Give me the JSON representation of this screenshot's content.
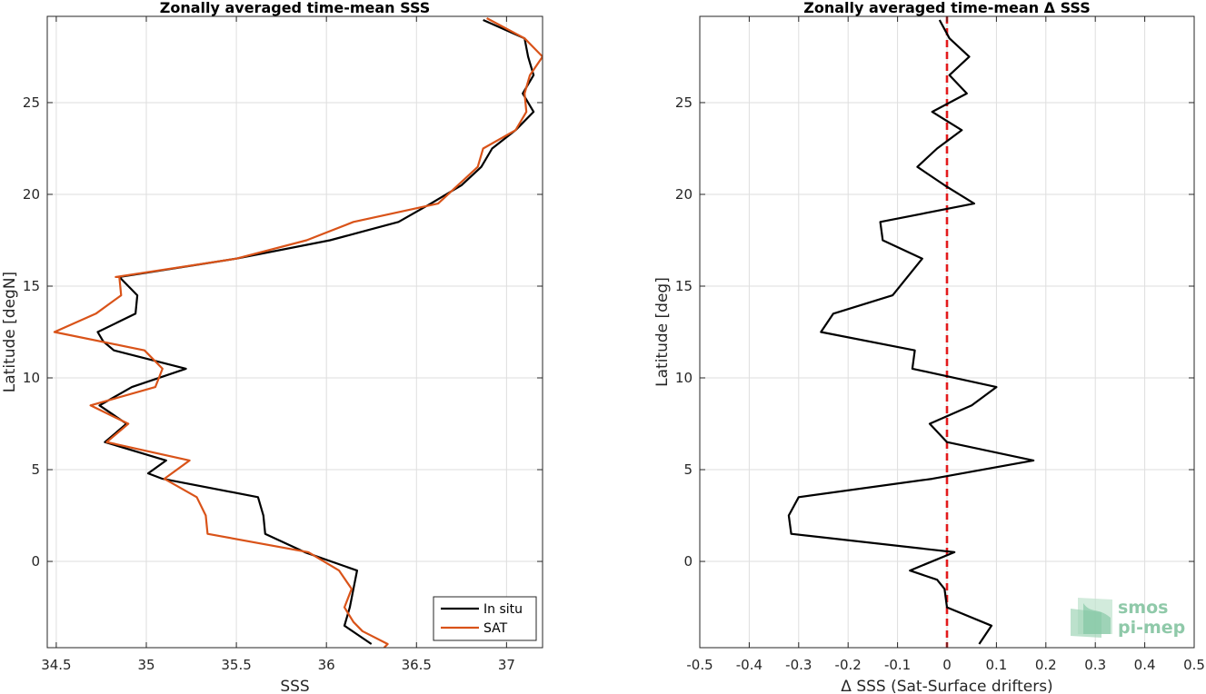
{
  "chart_data": [
    {
      "type": "line",
      "title": "Zonally averaged time-mean SSS",
      "xlabel": "SSS",
      "ylabel": "Latitude [degN]",
      "xlim": [
        34.45,
        37.2
      ],
      "ylim": [
        -4.7,
        29.7
      ],
      "xticks": [
        34.5,
        35,
        35.5,
        36,
        36.5,
        37
      ],
      "yticks": [
        0,
        5,
        10,
        15,
        20,
        25
      ],
      "grid": true,
      "legend": "bottom-right",
      "series": [
        {
          "name": "In situ",
          "color": "#000000",
          "x": [
            36.25,
            36.1,
            36.13,
            36.15,
            36.17,
            35.88,
            35.66,
            35.65,
            35.62,
            35.09,
            35.01,
            35.11,
            34.77,
            34.89,
            34.74,
            34.92,
            35.22,
            34.82,
            34.76,
            34.73,
            34.94,
            34.95,
            34.9,
            34.85,
            35.5,
            36.02,
            36.4,
            36.58,
            36.75,
            36.86,
            36.92,
            37.05,
            37.15,
            37.09,
            37.15,
            37.12,
            37.1,
            36.87
          ],
          "y": [
            -4.5,
            -3.5,
            -2.5,
            -1.5,
            -0.5,
            0.5,
            1.5,
            2.5,
            3.5,
            4.5,
            4.8,
            5.5,
            6.5,
            7.5,
            8.5,
            9.5,
            10.5,
            11.5,
            12.0,
            12.5,
            13.5,
            14.5,
            15.0,
            15.5,
            16.5,
            17.5,
            18.5,
            19.5,
            20.5,
            21.5,
            22.5,
            23.5,
            24.5,
            25.5,
            26.5,
            27.5,
            28.5,
            29.5
          ]
        },
        {
          "name": "SAT",
          "color": "#d95319",
          "x": [
            36.32,
            36.34,
            36.2,
            36.15,
            36.1,
            36.14,
            36.07,
            35.9,
            35.34,
            35.33,
            35.28,
            35.1,
            35.24,
            34.78,
            34.9,
            34.69,
            35.05,
            35.09,
            34.99,
            34.49,
            34.72,
            34.86,
            34.85,
            34.83,
            35.5,
            35.89,
            36.15,
            36.62,
            36.84,
            36.87,
            37.05,
            37.11,
            37.1,
            37.13,
            37.2,
            37.1,
            36.89
          ],
          "y": [
            -4.7,
            -4.5,
            -3.8,
            -3.3,
            -2.5,
            -1.5,
            -0.5,
            0.5,
            1.5,
            2.5,
            3.5,
            4.5,
            5.5,
            6.5,
            7.5,
            8.5,
            9.5,
            10.5,
            11.5,
            12.5,
            13.5,
            14.5,
            15.5,
            15.5,
            16.5,
            17.5,
            18.5,
            19.5,
            21.5,
            22.5,
            23.5,
            24.5,
            25.5,
            26.5,
            27.5,
            28.5,
            29.6
          ]
        }
      ]
    },
    {
      "type": "line",
      "title": "Zonally averaged time-mean Δ SSS",
      "xlabel": "Δ SSS (Sat-Surface drifters)",
      "ylabel": "Latitude [deg]",
      "xlim": [
        -0.5,
        0.5
      ],
      "ylim": [
        -4.7,
        29.7
      ],
      "xticks": [
        -0.5,
        -0.4,
        -0.3,
        -0.2,
        -0.1,
        0,
        0.1,
        0.2,
        0.3,
        0.4,
        0.5
      ],
      "yticks": [
        0,
        5,
        10,
        15,
        20,
        25
      ],
      "grid": true,
      "series": [
        {
          "color": "#000000",
          "x": [
            0.065,
            0.09,
            0.0,
            -0.005,
            -0.02,
            -0.075,
            0.015,
            -0.315,
            -0.32,
            -0.3,
            -0.03,
            0.175,
            0.0,
            -0.035,
            0.05,
            0.1,
            -0.07,
            -0.065,
            -0.255,
            -0.23,
            -0.11,
            -0.05,
            -0.13,
            -0.135,
            0.055,
            -0.005,
            -0.06,
            -0.02,
            0.03,
            -0.03,
            0.04,
            0.005,
            0.045,
            0.005,
            -0.015
          ],
          "y": [
            -4.5,
            -3.5,
            -2.5,
            -1.5,
            -1.0,
            -0.5,
            0.5,
            1.5,
            2.5,
            3.5,
            4.5,
            5.5,
            6.5,
            7.5,
            8.5,
            9.5,
            10.5,
            11.5,
            12.5,
            13.5,
            14.5,
            16.5,
            17.5,
            18.5,
            19.5,
            20.5,
            21.5,
            22.5,
            23.5,
            24.5,
            25.5,
            26.5,
            27.5,
            28.5,
            29.5
          ]
        }
      ],
      "reference_line": {
        "x": 0,
        "color": "#e31a1c",
        "style": "dashed"
      }
    }
  ],
  "legend_labels": [
    "In situ",
    "SAT"
  ],
  "logo": {
    "line1": "smos",
    "line2": "pi-mep",
    "color": "#8fc9a9"
  }
}
